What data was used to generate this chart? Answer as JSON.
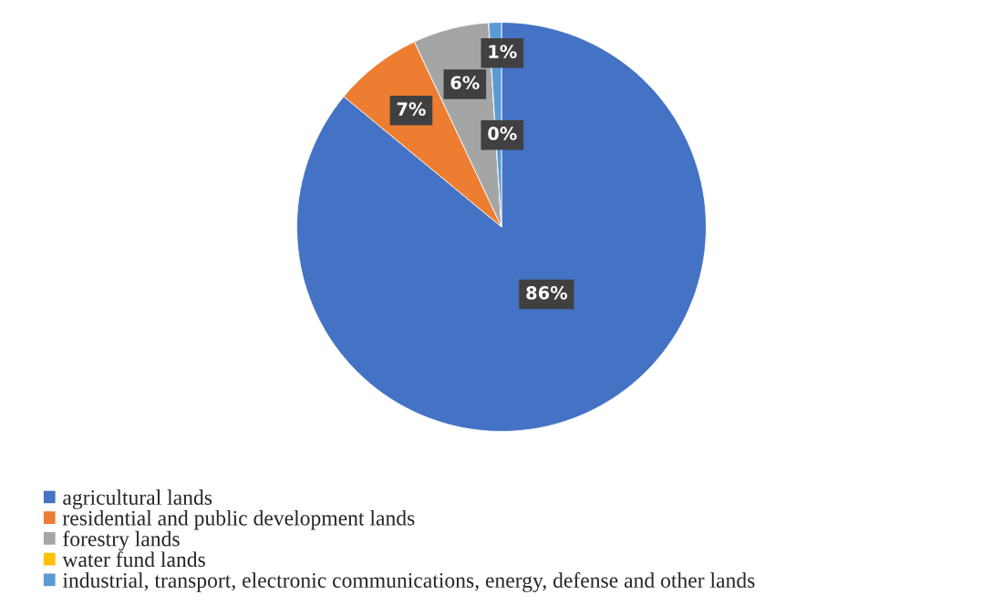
{
  "chart_data": {
    "type": "pie",
    "categories": [
      "agricultural lands",
      "residential and public development lands",
      "forestry lands",
      "water fund lands",
      "industrial, transport, electronic communications, energy, defense and other lands"
    ],
    "values": [
      86,
      7,
      6,
      0,
      1
    ],
    "colors": [
      "#4472c4",
      "#ed7d31",
      "#a5a5a5",
      "#ffc000",
      "#5b9bd5"
    ],
    "value_labels": [
      "86%",
      "7%",
      "6%",
      "0%",
      "1%"
    ],
    "legend": "bottom left"
  }
}
